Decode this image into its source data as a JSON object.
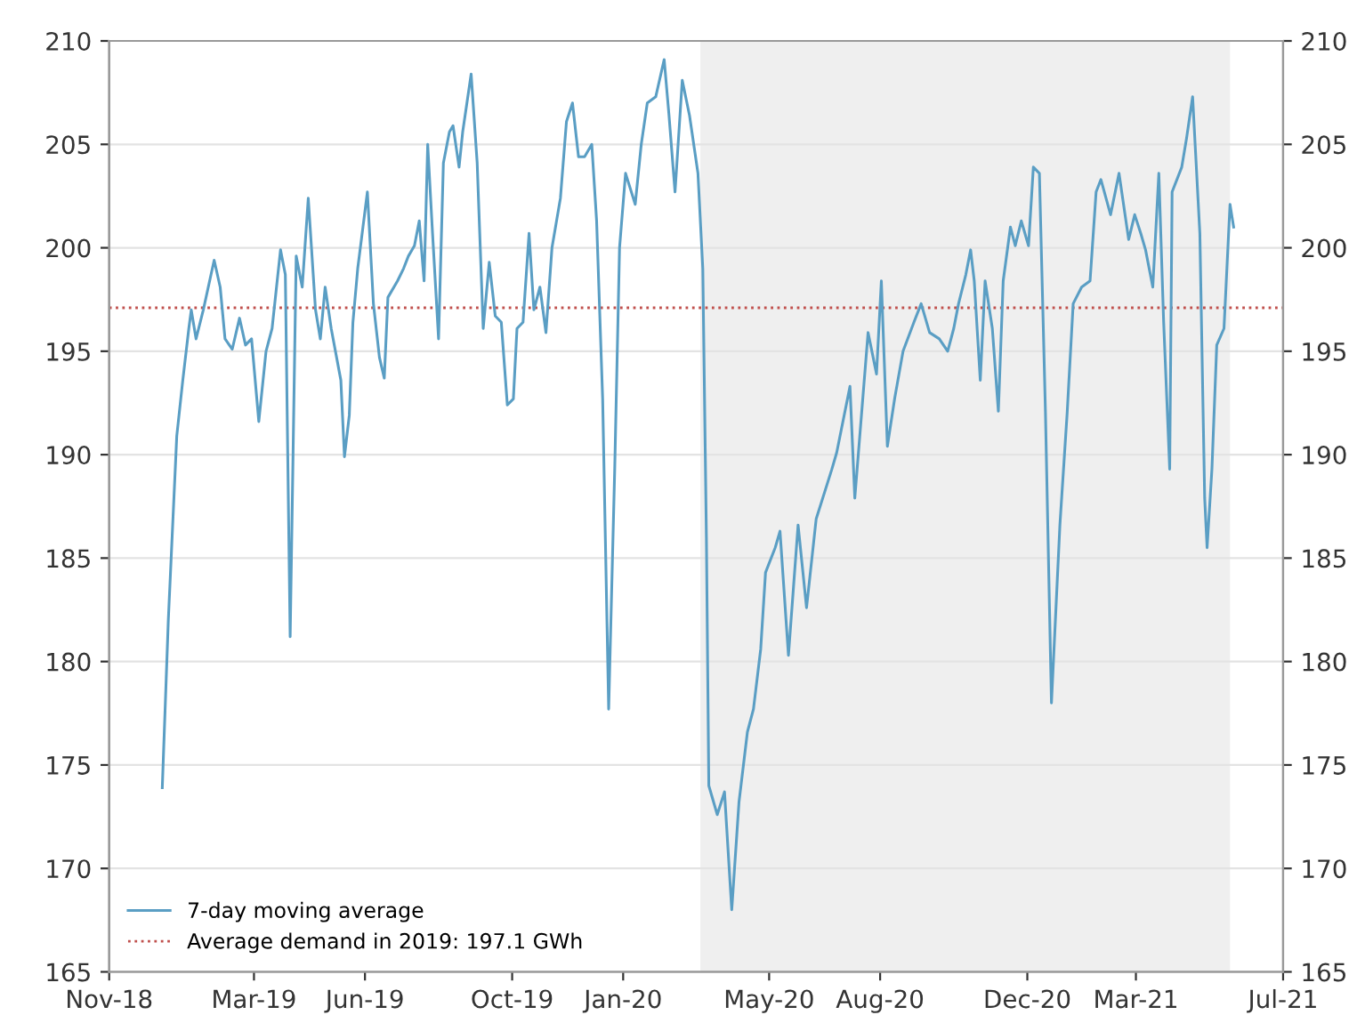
{
  "chart_data": {
    "type": "line",
    "x": [
      "2018-12-15",
      "2018-12-20",
      "2018-12-27",
      "2019-01-01",
      "2019-01-06",
      "2019-01-08",
      "2019-01-12",
      "2019-01-18",
      "2019-01-27",
      "2019-02-01",
      "2019-02-05",
      "2019-02-11",
      "2019-02-17",
      "2019-02-22",
      "2019-02-27",
      "2019-03-05",
      "2019-03-11",
      "2019-03-16",
      "2019-03-23",
      "2019-03-27",
      "2019-03-31",
      "2019-04-05",
      "2019-04-10",
      "2019-04-15",
      "2019-04-21",
      "2019-04-25",
      "2019-04-29",
      "2019-05-04",
      "2019-05-12",
      "2019-05-15",
      "2019-05-19",
      "2019-05-22",
      "2019-05-26",
      "2019-06-03",
      "2019-06-08",
      "2019-06-13",
      "2019-06-17",
      "2019-06-20",
      "2019-06-28",
      "2019-07-03",
      "2019-07-07",
      "2019-07-12",
      "2019-07-16",
      "2019-07-20",
      "2019-07-23",
      "2019-07-27",
      "2019-08-01",
      "2019-08-05",
      "2019-08-10",
      "2019-08-13",
      "2019-08-18",
      "2019-08-21",
      "2019-08-28",
      "2019-09-02",
      "2019-09-07",
      "2019-09-12",
      "2019-09-17",
      "2019-09-22",
      "2019-09-27",
      "2019-10-02",
      "2019-10-05",
      "2019-10-10",
      "2019-10-15",
      "2019-10-19",
      "2019-10-24",
      "2019-10-29",
      "2019-11-03",
      "2019-11-10",
      "2019-11-15",
      "2019-11-20",
      "2019-11-25",
      "2019-11-30",
      "2019-12-06",
      "2019-12-10",
      "2019-12-15",
      "2019-12-20",
      "2019-12-25",
      "2019-12-29",
      "2020-01-03",
      "2020-01-11",
      "2020-01-16",
      "2020-01-21",
      "2020-01-28",
      "2020-02-04",
      "2020-02-08",
      "2020-02-13",
      "2020-02-19",
      "2020-02-25",
      "2020-03-03",
      "2020-03-07",
      "2020-03-10",
      "2020-03-12",
      "2020-03-19",
      "2020-03-25",
      "2020-03-31",
      "2020-04-06",
      "2020-04-13",
      "2020-04-18",
      "2020-04-24",
      "2020-04-28",
      "2020-05-06",
      "2020-05-10",
      "2020-05-17",
      "2020-05-25",
      "2020-06-01",
      "2020-06-09",
      "2020-06-22",
      "2020-06-26",
      "2020-07-07",
      "2020-07-11",
      "2020-07-22",
      "2020-07-29",
      "2020-08-02",
      "2020-08-07",
      "2020-08-13",
      "2020-08-20",
      "2020-08-29",
      "2020-09-04",
      "2020-09-11",
      "2020-09-19",
      "2020-09-26",
      "2020-10-01",
      "2020-10-05",
      "2020-10-11",
      "2020-10-15",
      "2020-10-18",
      "2020-10-23",
      "2020-10-27",
      "2020-11-02",
      "2020-11-07",
      "2020-11-11",
      "2020-11-17",
      "2020-11-21",
      "2020-11-26",
      "2020-12-02",
      "2020-12-06",
      "2020-12-11",
      "2020-12-16",
      "2020-12-21",
      "2020-12-28",
      "2021-01-03",
      "2021-01-08",
      "2021-01-15",
      "2021-01-22",
      "2021-01-27",
      "2021-01-31",
      "2021-02-08",
      "2021-02-15",
      "2021-02-23",
      "2021-02-28",
      "2021-03-05",
      "2021-03-09",
      "2021-03-15",
      "2021-03-20",
      "2021-03-24",
      "2021-03-29",
      "2021-03-31",
      "2021-04-08",
      "2021-04-12",
      "2021-04-17",
      "2021-04-23",
      "2021-04-27",
      "2021-04-29",
      "2021-05-03",
      "2021-05-07",
      "2021-05-13",
      "2021-05-18",
      "2021-05-21"
    ],
    "series": [
      {
        "name": "7-day moving average",
        "color": "#5a9ec4",
        "values": [
          173.9,
          182.0,
          190.9,
          193.6,
          196.1,
          197.0,
          195.6,
          197.0,
          199.4,
          198.1,
          195.6,
          195.1,
          196.6,
          195.3,
          195.6,
          191.6,
          195.0,
          196.1,
          199.9,
          198.7,
          181.2,
          199.6,
          198.1,
          202.4,
          197.0,
          195.6,
          198.1,
          196.1,
          193.6,
          189.9,
          191.9,
          196.4,
          199.0,
          202.7,
          197.3,
          194.7,
          193.7,
          197.6,
          198.4,
          199.0,
          199.6,
          200.1,
          201.3,
          198.4,
          205.0,
          200.7,
          195.6,
          204.1,
          205.6,
          205.9,
          203.9,
          205.6,
          208.4,
          204.1,
          196.1,
          199.3,
          196.7,
          196.4,
          192.4,
          192.7,
          196.1,
          196.4,
          200.7,
          197.0,
          198.1,
          195.9,
          200.0,
          202.4,
          206.1,
          207.0,
          204.4,
          204.4,
          205.0,
          201.3,
          192.7,
          177.7,
          189.3,
          200.0,
          203.6,
          202.1,
          205.0,
          207.0,
          207.3,
          209.1,
          206.4,
          202.7,
          208.1,
          206.4,
          203.6,
          199.0,
          186.0,
          174.0,
          172.6,
          173.7,
          168.0,
          173.2,
          176.6,
          177.7,
          180.6,
          184.3,
          185.5,
          186.3,
          180.3,
          186.6,
          182.6,
          186.9,
          189.3,
          190.1,
          193.3,
          187.9,
          195.9,
          193.9,
          198.4,
          190.4,
          192.7,
          195.0,
          196.4,
          197.3,
          195.9,
          195.6,
          195.0,
          196.1,
          197.3,
          198.7,
          199.9,
          198.4,
          193.6,
          198.4,
          196.1,
          192.1,
          198.4,
          201.0,
          200.1,
          201.3,
          200.1,
          203.9,
          203.6,
          192.1,
          178.0,
          186.6,
          192.0,
          197.3,
          198.1,
          198.4,
          202.7,
          203.3,
          201.6,
          203.6,
          200.4,
          201.6,
          200.7,
          199.9,
          198.1,
          203.6,
          196.4,
          189.3,
          202.7,
          203.9,
          205.3,
          207.3,
          200.7,
          187.9,
          185.5,
          189.3,
          195.3,
          196.1,
          202.1,
          201.0
        ]
      }
    ],
    "ref_lines": [
      {
        "axis": "y",
        "value": 197.1,
        "label": "Average demand in 2019: 197.1 GWh",
        "color": "#c0504d",
        "line_style": "dotted"
      }
    ],
    "bands": [
      {
        "axis": "x",
        "from": "2020-03-05",
        "to": "2021-05-18",
        "color": "#efefef"
      }
    ],
    "xlim": [
      "2018-11-01",
      "2021-07-01"
    ],
    "xticks": [
      {
        "value": "2018-11-01",
        "label": "Nov-18"
      },
      {
        "value": "2019-03-01",
        "label": "Mar-19"
      },
      {
        "value": "2019-06-01",
        "label": "Jun-19"
      },
      {
        "value": "2019-10-01",
        "label": "Oct-19"
      },
      {
        "value": "2020-01-01",
        "label": "Jan-20"
      },
      {
        "value": "2020-05-01",
        "label": "May-20"
      },
      {
        "value": "2020-08-01",
        "label": "Aug-20"
      },
      {
        "value": "2020-12-01",
        "label": "Dec-20"
      },
      {
        "value": "2021-03-01",
        "label": "Mar-21"
      },
      {
        "value": "2021-07-01",
        "label": "Jul-21"
      }
    ],
    "ylim": [
      165,
      210
    ],
    "yticks": [
      165,
      170,
      175,
      180,
      185,
      190,
      195,
      200,
      205,
      210
    ],
    "y2lim": [
      165,
      210
    ],
    "y2ticks": [
      165,
      170,
      175,
      180,
      185,
      190,
      195,
      200,
      205,
      210
    ],
    "grid": "y",
    "legend": "bottom left",
    "line_style": "solid",
    "marker": "none"
  }
}
